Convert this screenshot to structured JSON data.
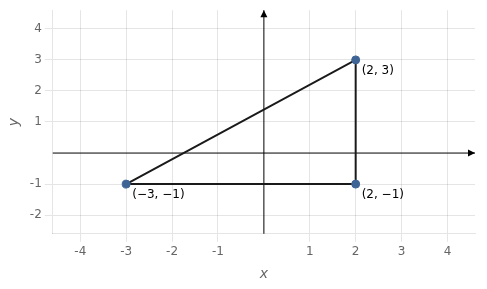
{
  "chart_data": {
    "type": "scatter",
    "x": [
      -3,
      2,
      2
    ],
    "series": [
      {
        "type": "polygon",
        "line_style": "solid",
        "color": "#1a1a1a",
        "values": [
          -1,
          -1,
          3
        ]
      },
      {
        "type": "scatter",
        "marker": "circle",
        "color": "#3d6494",
        "values": [
          -1,
          -1,
          3
        ]
      }
    ],
    "annotations": [
      {
        "text": "(−3, −1)",
        "x": -3,
        "y": -1
      },
      {
        "text": "(2, −1)",
        "x": 2,
        "y": -1
      },
      {
        "text": "(2, 3)",
        "x": 2,
        "y": 3
      }
    ],
    "xlabel": "x",
    "ylabel": "y",
    "xlim": [
      -4.6,
      4.6
    ],
    "ylim": [
      -2.6,
      4.6
    ],
    "xticks": [
      -4,
      -3,
      -2,
      -1,
      1,
      2,
      3,
      4
    ],
    "yticks": [
      -2,
      -1,
      1,
      2,
      3,
      4
    ],
    "grid": true
  }
}
